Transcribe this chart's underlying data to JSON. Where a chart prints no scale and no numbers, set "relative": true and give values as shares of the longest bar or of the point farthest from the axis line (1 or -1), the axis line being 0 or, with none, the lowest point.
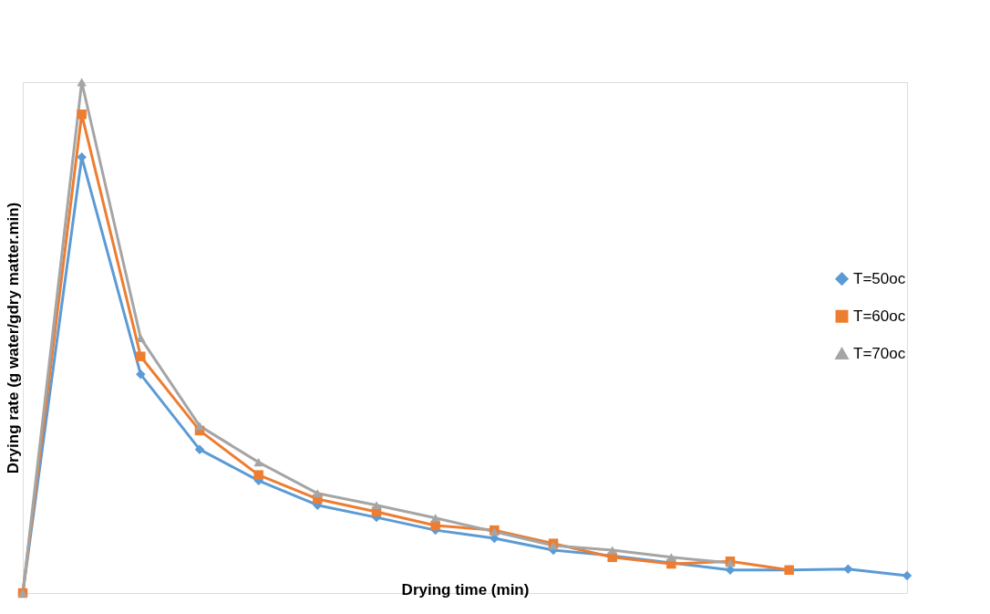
{
  "chart_data": {
    "type": "line",
    "xlabel": "Drying time (min)",
    "ylabel": "Drying rate (g water/gdry matter.min)",
    "relative": true,
    "legend": "right",
    "grid": false,
    "line_style": "solid",
    "categories": [
      null,
      null,
      null,
      null,
      null,
      null,
      null,
      null,
      null,
      null,
      null,
      null,
      null,
      null,
      null,
      null
    ],
    "series": [
      {
        "name": "T=50oc",
        "color": "#5b9bd5",
        "marker": "diamond",
        "values": [
          0,
          0.853,
          0.428,
          0.281,
          0.22,
          0.172,
          0.148,
          0.123,
          0.107,
          0.084,
          0.073,
          0.059,
          0.045,
          0.045,
          0.047,
          0.034
        ]
      },
      {
        "name": "T=60oc",
        "color": "#ed7d31",
        "marker": "square",
        "values": [
          0,
          0.937,
          0.463,
          0.318,
          0.231,
          0.184,
          0.159,
          0.132,
          0.123,
          0.097,
          0.07,
          0.057,
          0.062,
          0.045,
          null,
          null
        ]
      },
      {
        "name": "T=70oc",
        "color": "#a5a5a5",
        "marker": "triangle",
        "values": [
          0,
          1,
          0.499,
          0.327,
          0.256,
          0.195,
          0.172,
          0.147,
          0.12,
          0.093,
          0.084,
          0.07,
          0.059,
          null,
          null,
          null
        ]
      }
    ]
  }
}
